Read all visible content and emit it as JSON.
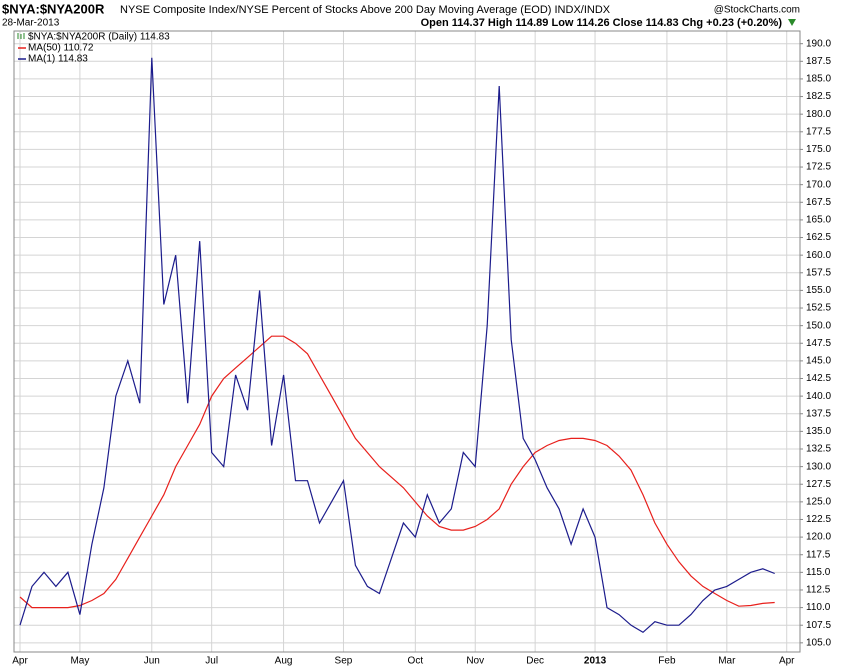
{
  "header": {
    "symbol": "$NYA:$NYA200R",
    "description": "NYSE Composite Index/NYSE Percent of Stocks Above 200 Day Moving Average (EOD)  INDX/INDX",
    "source": "@StockCharts.com",
    "date": "28-Mar-2013",
    "quote": "Open 114.37   High 114.89   Low 114.26   Close 114.83   Chg +0.23 (+0.20%)"
  },
  "chart_data": {
    "type": "line",
    "legend_title": "$NYA:$NYA200R (Daily) 114.83",
    "legend": "top-left",
    "grid": true,
    "categories": [
      "Apr",
      null,
      null,
      null,
      null,
      "May",
      null,
      null,
      null,
      null,
      null,
      "Jun",
      null,
      null,
      null,
      null,
      "Jul",
      null,
      null,
      null,
      null,
      null,
      "Aug",
      null,
      null,
      null,
      null,
      "Sep",
      null,
      null,
      null,
      null,
      null,
      "Oct",
      null,
      null,
      null,
      null,
      "Nov",
      null,
      null,
      null,
      null,
      "Dec",
      null,
      null,
      null,
      null,
      "2013",
      null,
      null,
      null,
      null,
      null,
      "Feb",
      null,
      null,
      null,
      null,
      "Mar",
      null,
      null,
      null,
      null,
      "Apr"
    ],
    "series": [
      {
        "name": "MA(50) 110.72",
        "color": "#e8201c",
        "values": [
          111.5,
          110,
          110,
          110,
          110,
          110.3,
          111,
          112,
          114,
          117,
          120,
          123,
          126,
          130,
          133,
          136,
          140,
          142.5,
          144,
          145.5,
          147,
          148.5,
          148.5,
          147.5,
          146,
          143,
          140,
          137,
          134,
          132,
          130,
          128.5,
          127,
          125,
          123,
          121.5,
          121,
          121,
          121.5,
          122.5,
          124,
          127.5,
          130,
          132,
          133,
          133.7,
          134,
          134,
          133.7,
          133,
          131.5,
          129.5,
          126,
          122,
          119,
          116.5,
          114.5,
          113,
          112,
          111,
          110.2,
          110.3,
          110.6,
          110.72,
          null
        ]
      },
      {
        "name": "MA(1) 114.83",
        "color": "#1c1c8c",
        "values": [
          107.5,
          113,
          115,
          113,
          115,
          109,
          119,
          127,
          140,
          145,
          139,
          188,
          153,
          160,
          139,
          162,
          132,
          130,
          143,
          138,
          155,
          133,
          143,
          128,
          128,
          122,
          125,
          128,
          116,
          113,
          112,
          117,
          122,
          120,
          126,
          122,
          124,
          132,
          130,
          150,
          184,
          148,
          134,
          131,
          127,
          124,
          119,
          124,
          120,
          110,
          109,
          107.5,
          106.5,
          108,
          107.5,
          107.5,
          109,
          111,
          112.5,
          113,
          114,
          115,
          115.5,
          114.83,
          null
        ]
      }
    ],
    "ylim": [
      103.7,
      191.8
    ],
    "yticks": [
      {
        "value": 105,
        "label": "105.0"
      },
      {
        "value": 107.5,
        "label": "107.5"
      },
      {
        "value": 110,
        "label": "110.0"
      },
      {
        "value": 112.5,
        "label": "112.5"
      },
      {
        "value": 115,
        "label": "115.0"
      },
      {
        "value": 117.5,
        "label": "117.5"
      },
      {
        "value": 120,
        "label": "120.0"
      },
      {
        "value": 122.5,
        "label": "122.5"
      },
      {
        "value": 125,
        "label": "125.0"
      },
      {
        "value": 127.5,
        "label": "127.5"
      },
      {
        "value": 130,
        "label": "130.0"
      },
      {
        "value": 132.5,
        "label": "132.5"
      },
      {
        "value": 135,
        "label": "135.0"
      },
      {
        "value": 137.5,
        "label": "137.5"
      },
      {
        "value": 140,
        "label": "140.0"
      },
      {
        "value": 142.5,
        "label": "142.5"
      },
      {
        "value": 145,
        "label": "145.0"
      },
      {
        "value": 147.5,
        "label": "147.5"
      },
      {
        "value": 150,
        "label": "150.0"
      },
      {
        "value": 152.5,
        "label": "152.5"
      },
      {
        "value": 155,
        "label": "155.0"
      },
      {
        "value": 157.5,
        "label": "157.5"
      },
      {
        "value": 160,
        "label": "160.0"
      },
      {
        "value": 162.5,
        "label": "162.5"
      },
      {
        "value": 165,
        "label": "165.0"
      },
      {
        "value": 167.5,
        "label": "167.5"
      },
      {
        "value": 170,
        "label": "170.0"
      },
      {
        "value": 172.5,
        "label": "172.5"
      },
      {
        "value": 175,
        "label": "175.0"
      },
      {
        "value": 177.5,
        "label": "177.5"
      },
      {
        "value": 180,
        "label": "180.0"
      },
      {
        "value": 182.5,
        "label": "182.5"
      },
      {
        "value": 185,
        "label": "185.0"
      },
      {
        "value": 187.5,
        "label": "187.5"
      },
      {
        "value": 190,
        "label": "190.0"
      }
    ]
  }
}
